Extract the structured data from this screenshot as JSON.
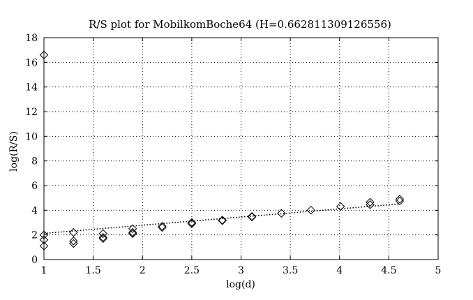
{
  "chart_data": {
    "type": "scatter",
    "title": "R/S plot for MobilkomBoche64 (H=0.662811309126556)",
    "xlabel": "log(d)",
    "ylabel": "log(R/S)",
    "xlim": [
      1,
      5
    ],
    "ylim": [
      0,
      18
    ],
    "x_ticks": [
      1,
      1.5,
      2,
      2.5,
      3,
      3.5,
      4,
      4.5,
      5
    ],
    "x_tick_labels": [
      "1",
      "1.5",
      "2",
      "2.5",
      "3",
      "3.5",
      "4",
      "4.5",
      "5"
    ],
    "y_ticks": [
      0,
      2,
      4,
      6,
      8,
      10,
      12,
      14,
      16,
      18
    ],
    "y_tick_labels": [
      "0",
      "2",
      "4",
      "6",
      "8",
      "10",
      "12",
      "14",
      "16",
      "18"
    ],
    "grid": true,
    "marker": "diamond",
    "points": [
      [
        1.0,
        16.6
      ],
      [
        1.0,
        2.0
      ],
      [
        1.0,
        1.6
      ],
      [
        1.0,
        1.1
      ],
      [
        1.3,
        2.2
      ],
      [
        1.3,
        1.5
      ],
      [
        1.3,
        1.3
      ],
      [
        1.6,
        2.1
      ],
      [
        1.6,
        1.8
      ],
      [
        1.6,
        1.7
      ],
      [
        1.9,
        2.5
      ],
      [
        1.9,
        2.2
      ],
      [
        1.9,
        2.1
      ],
      [
        2.2,
        2.7
      ],
      [
        2.2,
        2.6
      ],
      [
        2.5,
        3.0
      ],
      [
        2.5,
        2.9
      ],
      [
        2.81,
        3.2
      ],
      [
        2.81,
        3.15
      ],
      [
        3.11,
        3.5
      ],
      [
        3.11,
        3.45
      ],
      [
        3.41,
        3.75
      ],
      [
        3.71,
        4.0
      ],
      [
        4.01,
        4.3
      ],
      [
        4.31,
        4.65
      ],
      [
        4.31,
        4.45
      ],
      [
        4.61,
        4.9
      ],
      [
        4.61,
        4.75
      ]
    ],
    "fit_line": {
      "style": "dotted",
      "slope": 0.662811309126556,
      "intercept": 1.46,
      "x_range": [
        1,
        4.61
      ]
    }
  }
}
